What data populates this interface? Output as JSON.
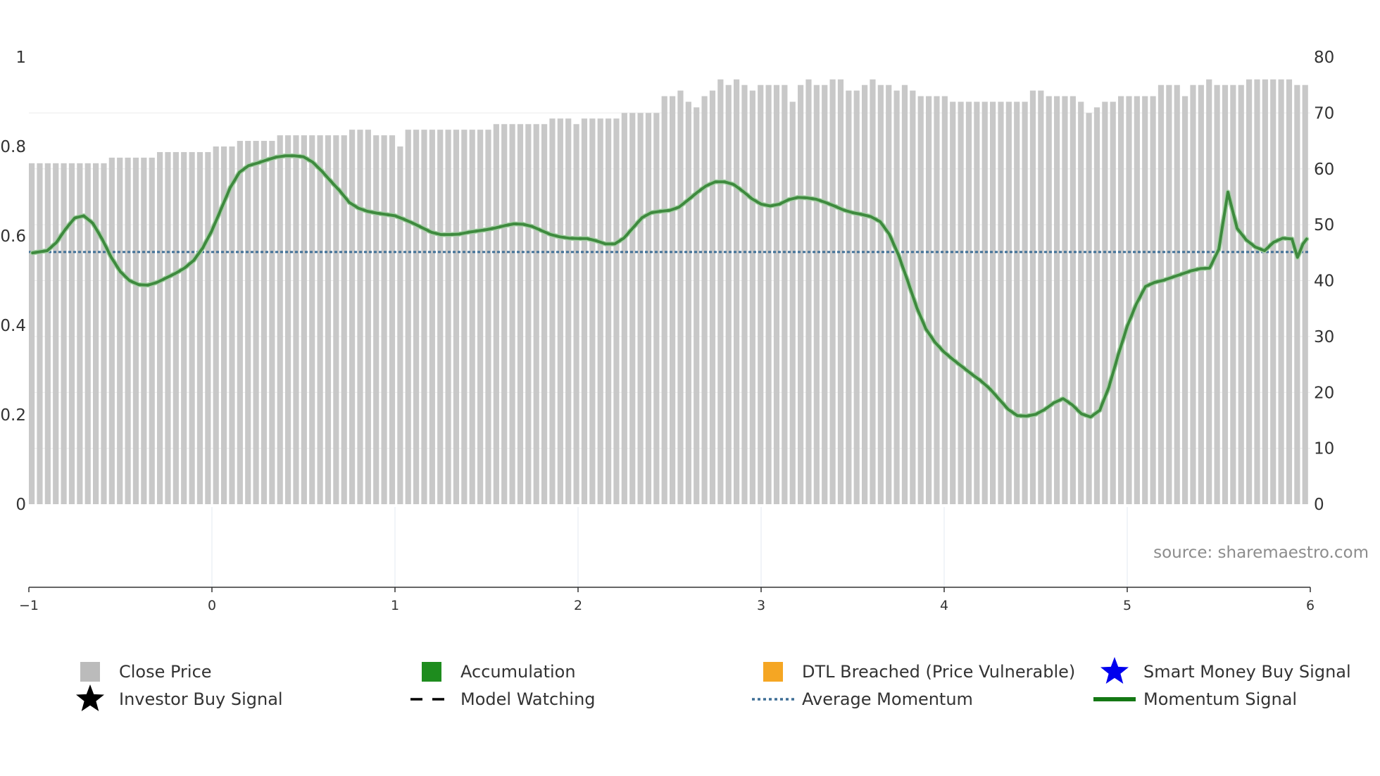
{
  "chart_data": {
    "type": "bar",
    "source_label": "source: sharemaestro.com",
    "x_axis": {
      "range": [
        -1,
        6
      ],
      "ticks": [
        "−1",
        "0",
        "1",
        "2",
        "3",
        "4",
        "5",
        "6"
      ]
    },
    "y_left": {
      "range": [
        0,
        1
      ],
      "ticks": [
        "0",
        "0.2",
        "0.4",
        "0.6",
        "0.8",
        "1"
      ]
    },
    "y_right": {
      "range": [
        0,
        80
      ],
      "ticks": [
        "0",
        "10",
        "20",
        "30",
        "40",
        "50",
        "60",
        "70",
        "80"
      ]
    },
    "average_momentum": 0.564,
    "close_price_values": [
      61,
      61,
      61,
      61,
      61,
      61,
      61,
      61,
      61,
      61,
      62,
      62,
      62,
      62,
      62,
      62,
      63,
      63,
      63,
      63,
      63,
      63,
      63,
      64,
      64,
      64,
      65,
      65,
      65,
      65,
      65,
      66,
      66,
      66,
      66,
      66,
      66,
      66,
      66,
      66,
      67,
      67,
      67,
      66,
      66,
      66,
      64,
      67,
      67,
      67,
      67,
      67,
      67,
      67,
      67,
      67,
      67,
      67,
      68,
      68,
      68,
      68,
      68,
      68,
      68,
      69,
      69,
      69,
      68,
      69,
      69,
      69,
      69,
      69,
      70,
      70,
      70,
      70,
      70,
      73,
      73,
      74,
      72,
      71,
      73,
      74,
      76,
      75,
      76,
      75,
      74,
      75,
      75,
      75,
      75,
      72,
      75,
      76,
      75,
      75,
      76,
      76,
      74,
      74,
      75,
      76,
      75,
      75,
      74,
      75,
      74,
      73,
      73,
      73,
      73,
      72,
      72,
      72,
      72,
      72,
      72,
      72,
      72,
      72,
      72,
      74,
      74,
      73,
      73,
      73,
      73,
      72,
      70,
      71,
      72,
      72,
      73,
      73,
      73,
      73,
      73,
      75,
      75,
      75,
      73,
      75,
      75,
      76,
      75,
      75,
      75,
      75,
      76,
      76,
      76,
      76,
      76,
      76,
      75,
      75
    ],
    "momentum_signal": [
      [
        -0.98,
        0.562
      ],
      [
        -0.9,
        0.567
      ],
      [
        -0.85,
        0.585
      ],
      [
        -0.8,
        0.615
      ],
      [
        -0.75,
        0.64
      ],
      [
        -0.7,
        0.645
      ],
      [
        -0.65,
        0.628
      ],
      [
        -0.6,
        0.593
      ],
      [
        -0.55,
        0.552
      ],
      [
        -0.5,
        0.52
      ],
      [
        -0.45,
        0.5
      ],
      [
        -0.4,
        0.491
      ],
      [
        -0.35,
        0.49
      ],
      [
        -0.3,
        0.496
      ],
      [
        -0.25,
        0.506
      ],
      [
        -0.2,
        0.516
      ],
      [
        -0.15,
        0.528
      ],
      [
        -0.1,
        0.545
      ],
      [
        -0.05,
        0.573
      ],
      [
        0.0,
        0.612
      ],
      [
        0.05,
        0.66
      ],
      [
        0.1,
        0.708
      ],
      [
        0.15,
        0.742
      ],
      [
        0.2,
        0.757
      ],
      [
        0.25,
        0.763
      ],
      [
        0.3,
        0.77
      ],
      [
        0.35,
        0.776
      ],
      [
        0.4,
        0.779
      ],
      [
        0.45,
        0.779
      ],
      [
        0.5,
        0.777
      ],
      [
        0.55,
        0.765
      ],
      [
        0.6,
        0.745
      ],
      [
        0.65,
        0.722
      ],
      [
        0.7,
        0.7
      ],
      [
        0.75,
        0.675
      ],
      [
        0.8,
        0.662
      ],
      [
        0.85,
        0.655
      ],
      [
        0.9,
        0.651
      ],
      [
        0.95,
        0.648
      ],
      [
        1.0,
        0.645
      ],
      [
        1.05,
        0.637
      ],
      [
        1.1,
        0.628
      ],
      [
        1.15,
        0.618
      ],
      [
        1.2,
        0.608
      ],
      [
        1.25,
        0.603
      ],
      [
        1.3,
        0.603
      ],
      [
        1.35,
        0.604
      ],
      [
        1.4,
        0.608
      ],
      [
        1.45,
        0.611
      ],
      [
        1.5,
        0.614
      ],
      [
        1.55,
        0.618
      ],
      [
        1.6,
        0.623
      ],
      [
        1.65,
        0.627
      ],
      [
        1.7,
        0.626
      ],
      [
        1.75,
        0.621
      ],
      [
        1.8,
        0.612
      ],
      [
        1.85,
        0.603
      ],
      [
        1.9,
        0.598
      ],
      [
        1.95,
        0.595
      ],
      [
        2.0,
        0.594
      ],
      [
        2.05,
        0.594
      ],
      [
        2.1,
        0.589
      ],
      [
        2.15,
        0.582
      ],
      [
        2.2,
        0.582
      ],
      [
        2.25,
        0.595
      ],
      [
        2.3,
        0.618
      ],
      [
        2.35,
        0.641
      ],
      [
        2.4,
        0.652
      ],
      [
        2.45,
        0.655
      ],
      [
        2.5,
        0.657
      ],
      [
        2.55,
        0.664
      ],
      [
        2.6,
        0.68
      ],
      [
        2.65,
        0.697
      ],
      [
        2.7,
        0.712
      ],
      [
        2.75,
        0.721
      ],
      [
        2.8,
        0.721
      ],
      [
        2.85,
        0.715
      ],
      [
        2.9,
        0.7
      ],
      [
        2.95,
        0.683
      ],
      [
        3.0,
        0.671
      ],
      [
        3.05,
        0.667
      ],
      [
        3.1,
        0.671
      ],
      [
        3.15,
        0.681
      ],
      [
        3.2,
        0.686
      ],
      [
        3.25,
        0.685
      ],
      [
        3.3,
        0.682
      ],
      [
        3.35,
        0.675
      ],
      [
        3.4,
        0.667
      ],
      [
        3.45,
        0.658
      ],
      [
        3.5,
        0.652
      ],
      [
        3.55,
        0.648
      ],
      [
        3.6,
        0.643
      ],
      [
        3.65,
        0.632
      ],
      [
        3.7,
        0.604
      ],
      [
        3.75,
        0.558
      ],
      [
        3.8,
        0.5
      ],
      [
        3.85,
        0.44
      ],
      [
        3.9,
        0.392
      ],
      [
        3.95,
        0.362
      ],
      [
        4.0,
        0.34
      ],
      [
        4.05,
        0.323
      ],
      [
        4.1,
        0.307
      ],
      [
        4.15,
        0.291
      ],
      [
        4.2,
        0.276
      ],
      [
        4.25,
        0.258
      ],
      [
        4.3,
        0.235
      ],
      [
        4.35,
        0.212
      ],
      [
        4.4,
        0.198
      ],
      [
        4.45,
        0.197
      ],
      [
        4.5,
        0.201
      ],
      [
        4.55,
        0.212
      ],
      [
        4.6,
        0.227
      ],
      [
        4.65,
        0.236
      ],
      [
        4.7,
        0.222
      ],
      [
        4.75,
        0.202
      ],
      [
        4.8,
        0.195
      ],
      [
        4.85,
        0.21
      ],
      [
        4.9,
        0.262
      ],
      [
        4.95,
        0.333
      ],
      [
        5.0,
        0.398
      ],
      [
        5.05,
        0.448
      ],
      [
        5.1,
        0.487
      ],
      [
        5.15,
        0.496
      ],
      [
        5.2,
        0.501
      ],
      [
        5.25,
        0.508
      ],
      [
        5.3,
        0.515
      ],
      [
        5.35,
        0.522
      ],
      [
        5.4,
        0.527
      ],
      [
        5.45,
        0.528
      ],
      [
        5.5,
        0.57
      ],
      [
        5.55,
        0.698
      ],
      [
        5.6,
        0.617
      ],
      [
        5.65,
        0.591
      ],
      [
        5.7,
        0.575
      ],
      [
        5.75,
        0.567
      ],
      [
        5.8,
        0.586
      ],
      [
        5.85,
        0.595
      ],
      [
        5.9,
        0.593
      ],
      [
        5.93,
        0.552
      ],
      [
        5.96,
        0.582
      ],
      [
        5.98,
        0.593
      ]
    ],
    "legend": [
      {
        "label": "Close Price",
        "symbol": "square",
        "color": "#bbbbbb"
      },
      {
        "label": "Accumulation",
        "symbol": "square",
        "color": "#1e8c1e"
      },
      {
        "label": "DTL Breached (Price Vulnerable)",
        "symbol": "square",
        "color": "#f5a623"
      },
      {
        "label": "Smart Money Buy Signal",
        "symbol": "star",
        "color": "#0000ee"
      },
      {
        "label": "Investor Buy Signal",
        "symbol": "star",
        "color": "#000000"
      },
      {
        "label": "Model Watching",
        "symbol": "dash",
        "color": "#000000"
      },
      {
        "label": "Average Momentum",
        "symbol": "dot",
        "color": "#3f6f96"
      },
      {
        "label": "Momentum Signal",
        "symbol": "line",
        "color": "#2e7d2e"
      }
    ],
    "colors": {
      "bar": "#c8c8c8",
      "momentum": "#3e8a3e",
      "average": "#3f6f96",
      "axis": "#333333"
    }
  }
}
